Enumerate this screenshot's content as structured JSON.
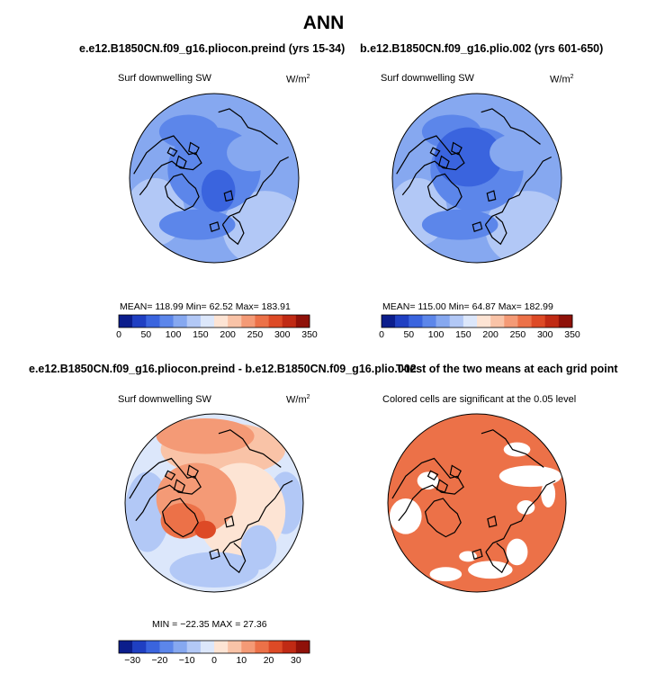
{
  "chart_data": [
    {
      "type": "heatmap",
      "title": "e.e12.B1850CN.f09_g16.pliocon.preind (yrs 15-34)",
      "field_label": "Surf downwelling SW",
      "units_base": "W/m",
      "units_exp": "2",
      "projection": "north polar stereographic",
      "stats": {
        "mean": "118.99",
        "min": "62.52",
        "max": "183.91"
      },
      "stats_text": "MEAN= 118.99   Min=   62.52   Max= 183.91",
      "colorbar": {
        "ticks": [
          "0",
          "50",
          "100",
          "150",
          "200",
          "250",
          "300",
          "350"
        ],
        "colors": [
          "#0b1d8c",
          "#1f3fc2",
          "#3a64de",
          "#5c86ea",
          "#86a8f0",
          "#b2c8f6",
          "#dce7fb",
          "#fde4d4",
          "#f9c3a7",
          "#f49a76",
          "#ec7148",
          "#dd4a26",
          "#c02a14",
          "#8f1109"
        ]
      }
    },
    {
      "type": "heatmap",
      "title": "b.e12.B1850CN.f09_g16.plio.002 (yrs 601-650)",
      "field_label": "Surf downwelling SW",
      "units_base": "W/m",
      "units_exp": "2",
      "projection": "north polar stereographic",
      "stats": {
        "mean": "115.00",
        "min": "64.87",
        "max": "182.99"
      },
      "stats_text": "MEAN= 115.00   Min=   64.87   Max= 182.99",
      "colorbar": {
        "ticks": [
          "0",
          "50",
          "100",
          "150",
          "200",
          "250",
          "300",
          "350"
        ],
        "colors": [
          "#0b1d8c",
          "#1f3fc2",
          "#3a64de",
          "#5c86ea",
          "#86a8f0",
          "#b2c8f6",
          "#dce7fb",
          "#fde4d4",
          "#f9c3a7",
          "#f49a76",
          "#ec7148",
          "#dd4a26",
          "#c02a14",
          "#8f1109"
        ]
      }
    },
    {
      "type": "heatmap",
      "title": "e.e12.B1850CN.f09_g16.pliocon.preind - b.e12.B1850CN.f09_g16.plio.002",
      "field_label": "Surf downwelling SW",
      "units_base": "W/m",
      "units_exp": "2",
      "projection": "north polar stereographic",
      "stats": {
        "min": "-22.35",
        "max": "27.36"
      },
      "stats_text": "MIN = −22.35  MAX =  27.36",
      "colorbar": {
        "ticks": [
          "−30",
          "−20",
          "−10",
          "0",
          "10",
          "20",
          "30"
        ],
        "colors": [
          "#0b1d8c",
          "#1f3fc2",
          "#3a64de",
          "#5c86ea",
          "#86a8f0",
          "#b2c8f6",
          "#dce7fb",
          "#fde4d4",
          "#f9c3a7",
          "#f49a76",
          "#ec7148",
          "#dd4a26",
          "#c02a14",
          "#8f1109"
        ]
      }
    },
    {
      "type": "heatmap",
      "title": "T-test of the two means at each grid point",
      "field_label": "Colored cells are significant at the 0.05 level",
      "projection": "north polar stereographic",
      "significance_level": 0.05
    }
  ],
  "page": {
    "main_title": "ANN"
  }
}
